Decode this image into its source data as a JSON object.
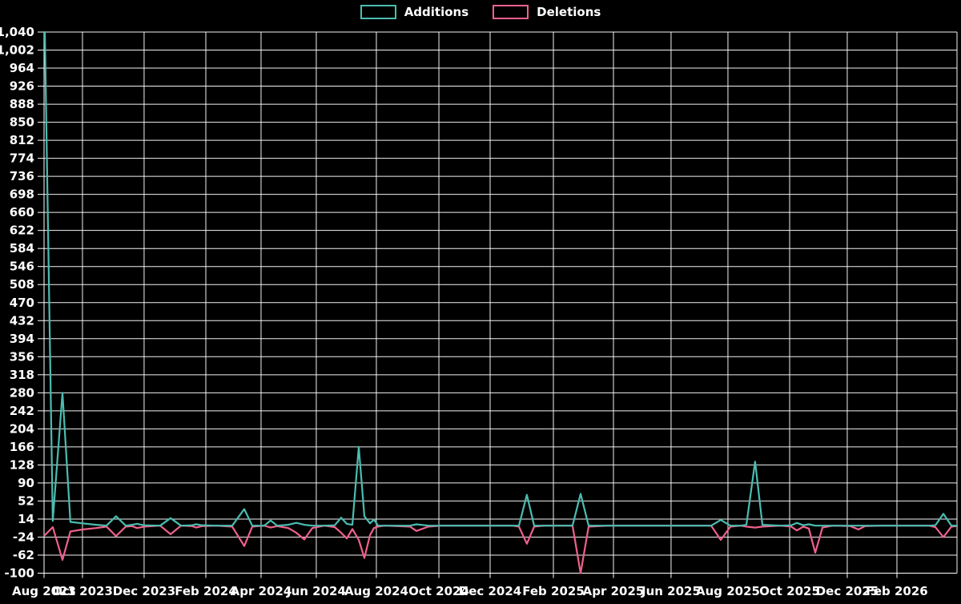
{
  "page": {
    "background": "#000000",
    "text_color": "#ffffff",
    "grid_color": "#ffffff"
  },
  "chart_data": {
    "type": "line",
    "title": "",
    "xlabel": "",
    "ylabel": "",
    "x_range_desc": "time axis from Aug 2023 (left edge) to early Mar 2026 (right edge); t = fractional position along this axis",
    "ylim": [
      -100,
      1040
    ],
    "grid": true,
    "legend_position": "top-center",
    "x_axis": {
      "ticks": [
        {
          "label": "Aug 2023",
          "t": 0.0
        },
        {
          "label": "Oct 2023",
          "t": 0.0421
        },
        {
          "label": "Dec 2023",
          "t": 0.1096
        },
        {
          "label": "Feb 2024",
          "t": 0.1772
        },
        {
          "label": "Apr 2024",
          "t": 0.2377
        },
        {
          "label": "Jun 2024",
          "t": 0.2982
        },
        {
          "label": "Aug 2024",
          "t": 0.364
        },
        {
          "label": "Oct 2024",
          "t": 0.4325
        },
        {
          "label": "Dec 2024",
          "t": 0.4886
        },
        {
          "label": "Feb 2025",
          "t": 0.5579
        },
        {
          "label": "Apr 2025",
          "t": 0.6237
        },
        {
          "label": "Jun 2025",
          "t": 0.6868
        },
        {
          "label": "Aug 2025",
          "t": 0.7491
        },
        {
          "label": "Oct 2025",
          "t": 0.8167
        },
        {
          "label": "Dec 2025",
          "t": 0.8798
        },
        {
          "label": "Feb 2026",
          "t": 0.9342
        }
      ]
    },
    "y_axis": {
      "min": -100,
      "max": 1040,
      "step": 38,
      "tick_labels": [
        "1,040",
        "1,002",
        "964",
        "926",
        "888",
        "850",
        "812",
        "774",
        "736",
        "698",
        "660",
        "622",
        "584",
        "546",
        "508",
        "470",
        "432",
        "394",
        "356",
        "318",
        "280",
        "242",
        "204",
        "166",
        "128",
        "90",
        "52",
        "14",
        "-24",
        "-62",
        "-100"
      ]
    },
    "series": [
      {
        "name": "Additions",
        "color": "#4bbcb1",
        "points": [
          [
            0.0009,
            1040
          ],
          [
            0.0096,
            10
          ],
          [
            0.0202,
            280
          ],
          [
            0.0289,
            8
          ],
          [
            0.0421,
            5
          ],
          [
            0.057,
            2
          ],
          [
            0.0684,
            0
          ],
          [
            0.0789,
            20
          ],
          [
            0.0895,
            0
          ],
          [
            0.0965,
            2
          ],
          [
            0.1018,
            4
          ],
          [
            0.1096,
            1
          ],
          [
            0.1272,
            0
          ],
          [
            0.1386,
            16
          ],
          [
            0.15,
            0
          ],
          [
            0.1623,
            1
          ],
          [
            0.1667,
            3
          ],
          [
            0.1728,
            1
          ],
          [
            0.1886,
            0
          ],
          [
            0.2061,
            0
          ],
          [
            0.2193,
            35
          ],
          [
            0.2281,
            0
          ],
          [
            0.2412,
            0
          ],
          [
            0.2482,
            11
          ],
          [
            0.2553,
            0
          ],
          [
            0.2675,
            2
          ],
          [
            0.2763,
            6
          ],
          [
            0.2851,
            2
          ],
          [
            0.2939,
            0
          ],
          [
            0.307,
            0
          ],
          [
            0.3184,
            1
          ],
          [
            0.3254,
            17
          ],
          [
            0.3316,
            4
          ],
          [
            0.3377,
            2
          ],
          [
            0.3447,
            166
          ],
          [
            0.3509,
            20
          ],
          [
            0.357,
            5
          ],
          [
            0.3614,
            13
          ],
          [
            0.3658,
            0
          ],
          [
            0.3728,
            0
          ],
          [
            0.4009,
            0
          ],
          [
            0.4079,
            3
          ],
          [
            0.4211,
            0
          ],
          [
            0.436,
            0
          ],
          [
            0.5132,
            0
          ],
          [
            0.5202,
            0
          ],
          [
            0.5289,
            65
          ],
          [
            0.5368,
            0
          ],
          [
            0.5482,
            0
          ],
          [
            0.5789,
            0
          ],
          [
            0.5877,
            67
          ],
          [
            0.5965,
            0
          ],
          [
            0.6184,
            0
          ],
          [
            0.7307,
            0
          ],
          [
            0.7412,
            12
          ],
          [
            0.7518,
            0
          ],
          [
            0.7632,
            0
          ],
          [
            0.7693,
            2
          ],
          [
            0.7789,
            135
          ],
          [
            0.7868,
            2
          ],
          [
            0.807,
            0
          ],
          [
            0.8184,
            1
          ],
          [
            0.8246,
            6
          ],
          [
            0.8316,
            1
          ],
          [
            0.8377,
            3
          ],
          [
            0.8447,
            0
          ],
          [
            0.8526,
            0
          ],
          [
            0.864,
            0
          ],
          [
            0.8833,
            0
          ],
          [
            0.8921,
            0
          ],
          [
            0.8991,
            0
          ],
          [
            0.9167,
            0
          ],
          [
            0.9693,
            0
          ],
          [
            0.9763,
            1
          ],
          [
            0.9851,
            25
          ],
          [
            0.9939,
            0
          ],
          [
            1.0,
            0
          ]
        ]
      },
      {
        "name": "Deletions",
        "color": "#f0618c",
        "points": [
          [
            0.0009,
            -20
          ],
          [
            0.0096,
            -3
          ],
          [
            0.0202,
            -72
          ],
          [
            0.0289,
            -12
          ],
          [
            0.0421,
            -8
          ],
          [
            0.057,
            -5
          ],
          [
            0.0684,
            -2
          ],
          [
            0.0789,
            -22
          ],
          [
            0.0895,
            -2
          ],
          [
            0.0965,
            -1
          ],
          [
            0.1018,
            -5
          ],
          [
            0.1096,
            -2
          ],
          [
            0.1272,
            0
          ],
          [
            0.1386,
            -18
          ],
          [
            0.15,
            0
          ],
          [
            0.1623,
            -1
          ],
          [
            0.1667,
            -4
          ],
          [
            0.1728,
            -1
          ],
          [
            0.1886,
            0
          ],
          [
            0.2061,
            -2
          ],
          [
            0.2193,
            -43
          ],
          [
            0.2281,
            -2
          ],
          [
            0.2412,
            0
          ],
          [
            0.2482,
            -4
          ],
          [
            0.2553,
            -1
          ],
          [
            0.2675,
            -5
          ],
          [
            0.2763,
            -15
          ],
          [
            0.2851,
            -29
          ],
          [
            0.2939,
            -5
          ],
          [
            0.307,
            0
          ],
          [
            0.3184,
            -3
          ],
          [
            0.3254,
            -15
          ],
          [
            0.3316,
            -27
          ],
          [
            0.3377,
            -7
          ],
          [
            0.3447,
            -30
          ],
          [
            0.3509,
            -68
          ],
          [
            0.357,
            -20
          ],
          [
            0.3614,
            -5
          ],
          [
            0.3658,
            -2
          ],
          [
            0.3728,
            0
          ],
          [
            0.4009,
            -2
          ],
          [
            0.4079,
            -11
          ],
          [
            0.4211,
            -2
          ],
          [
            0.436,
            0
          ],
          [
            0.5132,
            0
          ],
          [
            0.5202,
            -2
          ],
          [
            0.5289,
            -38
          ],
          [
            0.5368,
            -2
          ],
          [
            0.5482,
            0
          ],
          [
            0.5789,
            0
          ],
          [
            0.5877,
            -100
          ],
          [
            0.5965,
            -2
          ],
          [
            0.6184,
            0
          ],
          [
            0.7307,
            0
          ],
          [
            0.7412,
            -30
          ],
          [
            0.7518,
            -2
          ],
          [
            0.7632,
            0
          ],
          [
            0.7693,
            -2
          ],
          [
            0.7789,
            -4
          ],
          [
            0.7868,
            -2
          ],
          [
            0.807,
            0
          ],
          [
            0.8184,
            -2
          ],
          [
            0.8246,
            -10
          ],
          [
            0.8316,
            -2
          ],
          [
            0.8377,
            -6
          ],
          [
            0.8447,
            -57
          ],
          [
            0.8526,
            -4
          ],
          [
            0.864,
            0
          ],
          [
            0.8833,
            -1
          ],
          [
            0.8921,
            -8
          ],
          [
            0.8991,
            -1
          ],
          [
            0.9167,
            0
          ],
          [
            0.9693,
            0
          ],
          [
            0.9763,
            -3
          ],
          [
            0.9851,
            -24
          ],
          [
            0.9939,
            -2
          ],
          [
            1.0,
            -1
          ]
        ]
      }
    ]
  }
}
